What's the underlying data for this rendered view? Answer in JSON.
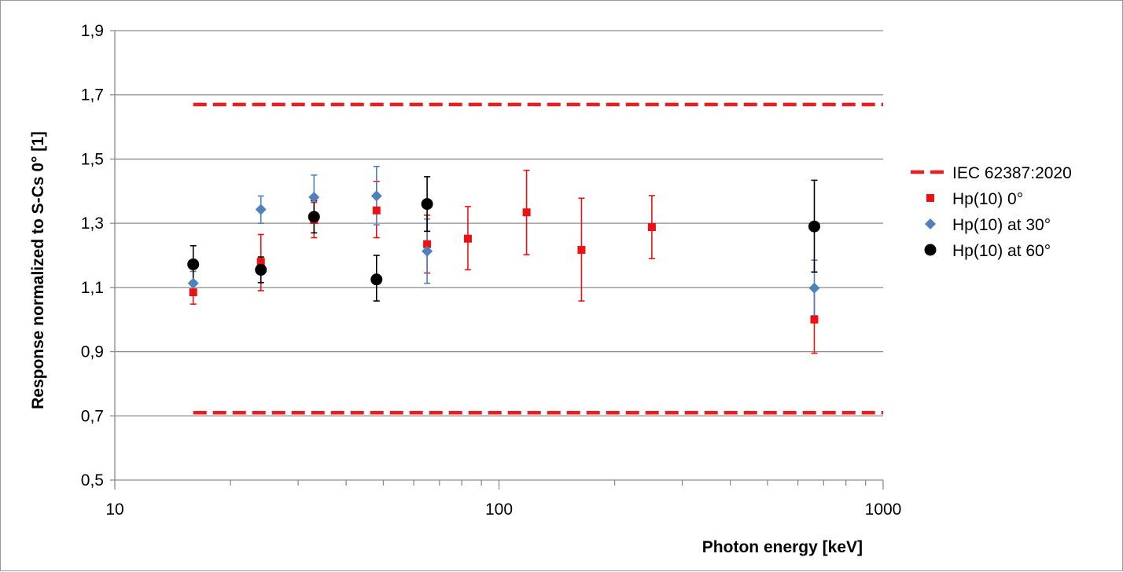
{
  "chart_data": {
    "type": "scatter",
    "xlabel": "Photon energy [keV]",
    "ylabel": "Response normalized to S-Cs 0°  [1]",
    "x_scale": "log",
    "xlim": [
      10,
      1000
    ],
    "ylim": [
      0.5,
      1.9
    ],
    "x_ticks": [
      10,
      100,
      1000
    ],
    "x_tick_labels": [
      "10",
      "100",
      "1000"
    ],
    "y_ticks": [
      0.5,
      0.7,
      0.9,
      1.1,
      1.3,
      1.5,
      1.7,
      1.9
    ],
    "y_tick_labels": [
      "0,5",
      "0,7",
      "0,9",
      "1,1",
      "1,3",
      "1,5",
      "1,7",
      "1,9"
    ],
    "grid": "horizontal",
    "legend_position": "right",
    "limits": {
      "name": "IEC 62387:2020",
      "color": "#ee1c1c",
      "style": "dashed",
      "x_range": [
        16,
        1000
      ],
      "values": [
        0.71,
        1.67
      ]
    },
    "series": [
      {
        "name": "Hp(10) 0°",
        "marker": "square",
        "color": "#ee1111",
        "points": [
          {
            "x": 16,
            "y": 1.085,
            "lo": 1.048,
            "hi": 1.12
          },
          {
            "x": 24,
            "y": 1.18,
            "lo": 1.09,
            "hi": 1.265
          },
          {
            "x": 33,
            "y": 1.31,
            "lo": 1.255,
            "hi": 1.365
          },
          {
            "x": 48,
            "y": 1.34,
            "lo": 1.255,
            "hi": 1.43
          },
          {
            "x": 65,
            "y": 1.235,
            "lo": 1.145,
            "hi": 1.325
          },
          {
            "x": 83,
            "y": 1.252,
            "lo": 1.155,
            "hi": 1.352
          },
          {
            "x": 118,
            "y": 1.334,
            "lo": 1.202,
            "hi": 1.465
          },
          {
            "x": 164,
            "y": 1.217,
            "lo": 1.058,
            "hi": 1.378
          },
          {
            "x": 250,
            "y": 1.288,
            "lo": 1.19,
            "hi": 1.386
          },
          {
            "x": 662,
            "y": 1.0,
            "lo": 0.895,
            "hi": 1.1
          }
        ]
      },
      {
        "name": "Hp(10) at 30°",
        "marker": "diamond",
        "color": "#4f81bd",
        "points": [
          {
            "x": 16,
            "y": 1.113,
            "lo": 1.075,
            "hi": 1.15
          },
          {
            "x": 24,
            "y": 1.343,
            "lo": 1.3,
            "hi": 1.385
          },
          {
            "x": 33,
            "y": 1.381,
            "lo": 1.31,
            "hi": 1.45
          },
          {
            "x": 48,
            "y": 1.385,
            "lo": 1.295,
            "hi": 1.477
          },
          {
            "x": 65,
            "y": 1.213,
            "lo": 1.113,
            "hi": 1.313
          },
          {
            "x": 662,
            "y": 1.098,
            "lo": 1.012,
            "hi": 1.185
          }
        ]
      },
      {
        "name": "Hp(10) at 60°",
        "marker": "circle",
        "color": "#000000",
        "points": [
          {
            "x": 16,
            "y": 1.172,
            "lo": 1.115,
            "hi": 1.23
          },
          {
            "x": 24,
            "y": 1.155,
            "lo": 1.115,
            "hi": 1.195
          },
          {
            "x": 33,
            "y": 1.32,
            "lo": 1.27,
            "hi": 1.37
          },
          {
            "x": 48,
            "y": 1.125,
            "lo": 1.058,
            "hi": 1.2
          },
          {
            "x": 65,
            "y": 1.36,
            "lo": 1.275,
            "hi": 1.445
          },
          {
            "x": 662,
            "y": 1.29,
            "lo": 1.148,
            "hi": 1.434
          }
        ]
      }
    ]
  }
}
